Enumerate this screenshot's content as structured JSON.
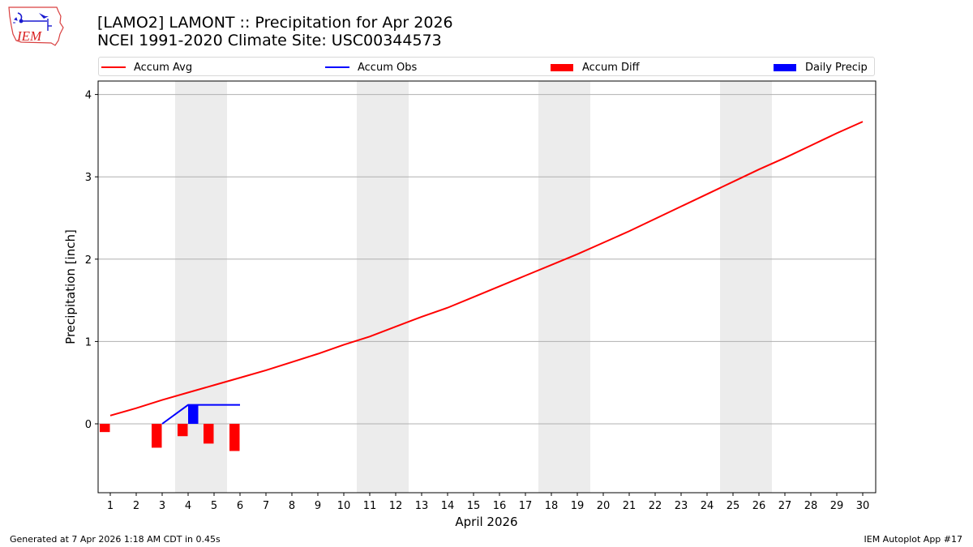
{
  "header": {
    "title_line1": "[LAMO2] LAMONT :: Precipitation for Apr 2026",
    "title_line2": "NCEI 1991-2020 Climate Site: USC00344573",
    "logo_text": "IEM"
  },
  "legend": {
    "items": [
      {
        "label": "Accum Avg",
        "kind": "line",
        "color": "#ff0000"
      },
      {
        "label": "Accum Obs",
        "kind": "line",
        "color": "#0000ff"
      },
      {
        "label": "Accum Diff",
        "kind": "patch",
        "color": "#ff0000"
      },
      {
        "label": "Daily Precip",
        "kind": "patch",
        "color": "#0000ff"
      }
    ]
  },
  "footer": {
    "generated": "Generated at 7 Apr 2026 1:18 AM CDT in 0.45s",
    "app": "IEM Autoplot App #17"
  },
  "chart_data": {
    "type": "line",
    "title": "[LAMO2] LAMONT :: Precipitation for Apr 2026",
    "subtitle": "NCEI 1991-2020 Climate Site: USC00344573",
    "xlabel": "April 2026",
    "ylabel": "Precipitation [inch]",
    "x": [
      1,
      2,
      3,
      4,
      5,
      6,
      7,
      8,
      9,
      10,
      11,
      12,
      13,
      14,
      15,
      16,
      17,
      18,
      19,
      20,
      21,
      22,
      23,
      24,
      25,
      26,
      27,
      28,
      29,
      30
    ],
    "xticks": [
      "1",
      "2",
      "3",
      "4",
      "5",
      "6",
      "7",
      "8",
      "9",
      "10",
      "11",
      "12",
      "13",
      "14",
      "15",
      "16",
      "17",
      "18",
      "19",
      "20",
      "21",
      "22",
      "23",
      "24",
      "25",
      "26",
      "27",
      "28",
      "29",
      "30"
    ],
    "yticks": [
      0,
      1,
      2,
      3,
      4
    ],
    "ylim": [
      -0.83,
      4.17
    ],
    "xlim": [
      0.5,
      30.5
    ],
    "grid": "y",
    "legend_position": "top",
    "weekend_bands": [
      [
        3.5,
        5.5
      ],
      [
        10.5,
        12.5
      ],
      [
        17.5,
        19.5
      ],
      [
        24.5,
        26.5
      ]
    ],
    "series": [
      {
        "name": "Accum Avg",
        "type": "line",
        "color": "#ff0000",
        "x": [
          1,
          2,
          3,
          4,
          5,
          6,
          7,
          8,
          9,
          10,
          11,
          12,
          13,
          14,
          15,
          16,
          17,
          18,
          19,
          20,
          21,
          22,
          23,
          24,
          25,
          26,
          27,
          28,
          29,
          30
        ],
        "values": [
          0.1,
          0.19,
          0.29,
          0.38,
          0.47,
          0.56,
          0.65,
          0.75,
          0.85,
          0.96,
          1.06,
          1.18,
          1.3,
          1.41,
          1.54,
          1.67,
          1.8,
          1.93,
          2.06,
          2.2,
          2.34,
          2.49,
          2.64,
          2.79,
          2.94,
          3.09,
          3.23,
          3.38,
          3.53,
          3.67
        ]
      },
      {
        "name": "Accum Obs",
        "type": "line",
        "color": "#0000ff",
        "x": [
          3,
          4,
          5,
          6
        ],
        "values": [
          0.0,
          0.23,
          0.23,
          0.23
        ]
      },
      {
        "name": "Accum Diff",
        "type": "bar",
        "color": "#ff0000",
        "x": [
          1,
          3,
          4,
          5,
          6
        ],
        "values": [
          -0.1,
          -0.29,
          -0.15,
          -0.24,
          -0.33
        ]
      },
      {
        "name": "Daily Precip",
        "type": "bar",
        "color": "#0000ff",
        "x": [
          4
        ],
        "values": [
          0.23
        ]
      }
    ]
  }
}
